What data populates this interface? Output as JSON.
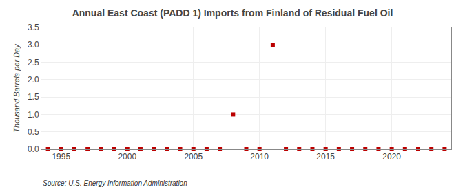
{
  "chart_data": {
    "type": "scatter",
    "title": "Annual East Coast (PADD 1) Imports from Finland of Residual Fuel Oil",
    "ylabel": "Thousand Barrels per Day",
    "annotations": [
      "Source: U.S. Energy Information Administration"
    ],
    "x": [
      1994,
      1995,
      1996,
      1997,
      1998,
      1999,
      2000,
      2001,
      2002,
      2003,
      2004,
      2005,
      2006,
      2007,
      2008,
      2009,
      2010,
      2011,
      2012,
      2013,
      2014,
      2015,
      2016,
      2017,
      2018,
      2019,
      2020,
      2021,
      2022,
      2023,
      2024
    ],
    "values": [
      0,
      0,
      0,
      0,
      0,
      0,
      0,
      0,
      0,
      0,
      0,
      0,
      0,
      0,
      1.0,
      0,
      0,
      3.0,
      0,
      0,
      0,
      0,
      0,
      0,
      0,
      0,
      0,
      0,
      0,
      0,
      0
    ],
    "color": "#bb0000",
    "marker": "square",
    "xlim": [
      1993.5,
      2024.5
    ],
    "ylim": [
      0,
      3.5
    ],
    "xticks": [
      1995,
      2000,
      2005,
      2010,
      2015,
      2020
    ],
    "yticks": [
      {
        "value": 0,
        "label": "0.0"
      },
      0.5,
      {
        "value": 1,
        "label": "1.0"
      },
      1.5,
      {
        "value": 2,
        "label": "2.0"
      },
      2.5,
      {
        "value": 3,
        "label": "3.0"
      },
      3.5
    ],
    "grid": true
  }
}
